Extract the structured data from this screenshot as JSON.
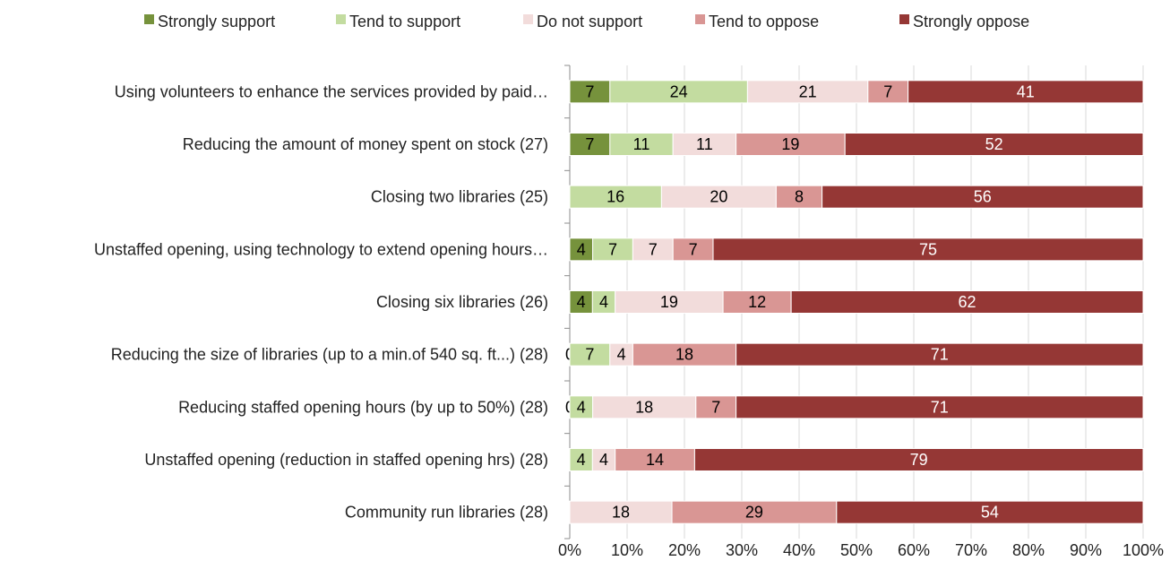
{
  "chart_data": {
    "type": "bar",
    "orientation": "horizontal",
    "stacked": "percent",
    "categories": [
      "Using volunteers to enhance the services provided by paid…",
      "Reducing the amount of money spent on stock (27)",
      "Closing two libraries (25)",
      "Unstaffed opening, using technology to extend opening hours…",
      "Closing six libraries (26)",
      "Reducing the size of libraries (up to a min.of 540 sq. ft...) (28)",
      "Reducing staffed opening hours (by up to 50%) (28)",
      "Unstaffed opening (reduction in staffed opening hrs) (28)",
      "Community run libraries (28)"
    ],
    "series": [
      {
        "name": "Strongly support",
        "color": "#76923c",
        "label_color": "#000000",
        "values": [
          7,
          7,
          null,
          4,
          4,
          0,
          0,
          null,
          null
        ]
      },
      {
        "name": "Tend to support",
        "color": "#c3dca0",
        "label_color": "#000000",
        "values": [
          24,
          11,
          16,
          7,
          4,
          7,
          4,
          4,
          null
        ]
      },
      {
        "name": "Do not support",
        "color": "#f2dcdb",
        "label_color": "#000000",
        "values": [
          21,
          11,
          20,
          7,
          19,
          4,
          18,
          4,
          18
        ]
      },
      {
        "name": "Tend to oppose",
        "color": "#d99694",
        "label_color": "#000000",
        "values": [
          7,
          19,
          8,
          7,
          12,
          18,
          7,
          14,
          29
        ]
      },
      {
        "name": "Strongly oppose",
        "color": "#953735",
        "label_color": "#ffffff",
        "values": [
          41,
          52,
          56,
          75,
          62,
          71,
          71,
          79,
          54
        ]
      }
    ],
    "x_ticks": [
      "0%",
      "10%",
      "20%",
      "30%",
      "40%",
      "50%",
      "60%",
      "70%",
      "80%",
      "90%",
      "100%"
    ],
    "xlim": [
      0,
      100
    ],
    "grid": true,
    "legend_position": "top",
    "title": "",
    "xlabel": "",
    "ylabel": ""
  }
}
